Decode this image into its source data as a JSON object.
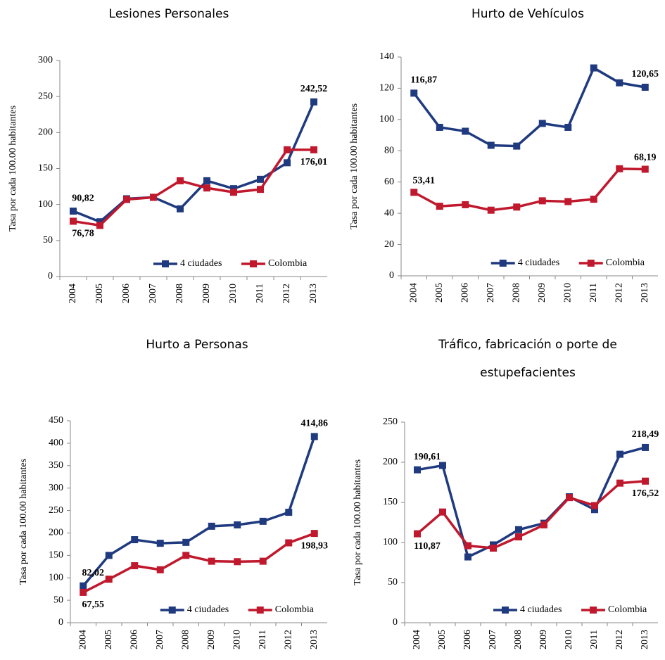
{
  "chart_data": [
    {
      "type": "line",
      "title": [
        "Lesiones Personales"
      ],
      "y_label": "Tasa por cada 100.00 habitantes",
      "categories": [
        "2004",
        "2005",
        "2006",
        "2007",
        "2008",
        "2009",
        "2010",
        "2011",
        "2012",
        "2013"
      ],
      "ylim": [
        0,
        300
      ],
      "yticks": [
        0,
        50,
        100,
        150,
        200,
        250,
        300
      ],
      "legend": "lower right",
      "series": [
        {
          "name": "4 ciudades",
          "color": "#1f3a7f",
          "values": [
            90.82,
            76,
            108,
            110,
            94,
            133,
            122,
            135,
            158,
            242.52
          ],
          "value_labels": [
            "90,82",
            null,
            null,
            null,
            null,
            null,
            null,
            null,
            null,
            "242,52"
          ]
        },
        {
          "name": "Colombia",
          "color": "#c0182d",
          "values": [
            76.78,
            71,
            107,
            110,
            133,
            123,
            117,
            121,
            176,
            176.01
          ],
          "value_labels": [
            "76,78",
            null,
            null,
            null,
            null,
            null,
            null,
            null,
            null,
            "176,01"
          ]
        }
      ]
    },
    {
      "type": "line",
      "title": [
        "Hurto de Vehículos"
      ],
      "y_label": "Tasa por cada 100.00 habitantes",
      "categories": [
        "2004",
        "2005",
        "2006",
        "2007",
        "2008",
        "2009",
        "2010",
        "2011",
        "2012",
        "2013"
      ],
      "ylim": [
        0,
        140
      ],
      "yticks": [
        0,
        20,
        40,
        60,
        80,
        100,
        120,
        140
      ],
      "legend": "lower right",
      "series": [
        {
          "name": "4 ciudades",
          "color": "#1f3a7f",
          "values": [
            116.87,
            95,
            92.5,
            83.5,
            83,
            97.5,
            95,
            133,
            123.5,
            120.65
          ],
          "value_labels": [
            "116,87",
            null,
            null,
            null,
            null,
            null,
            null,
            null,
            null,
            "120,65"
          ]
        },
        {
          "name": "Colombia",
          "color": "#c0182d",
          "values": [
            53.41,
            44.5,
            45.5,
            42,
            44,
            48,
            47.5,
            49,
            68.5,
            68.19
          ],
          "value_labels": [
            "53,41",
            null,
            null,
            null,
            null,
            null,
            null,
            null,
            null,
            "68,19"
          ]
        }
      ]
    },
    {
      "type": "line",
      "title": [
        "Hurto a Personas"
      ],
      "y_label": "Tasa por cada 100.00 habitantes",
      "categories": [
        "2004",
        "2005",
        "2006",
        "2007",
        "2008",
        "2009",
        "2010",
        "2011",
        "2012",
        "2013"
      ],
      "ylim": [
        0,
        450
      ],
      "yticks": [
        0,
        50,
        100,
        150,
        200,
        250,
        300,
        350,
        400,
        450
      ],
      "legend": "lower right",
      "series": [
        {
          "name": "4 ciudades",
          "color": "#1f3a7f",
          "values": [
            82.02,
            150,
            185,
            177,
            179,
            215,
            218,
            226,
            246,
            414.86
          ],
          "value_labels": [
            "82,02",
            null,
            null,
            null,
            null,
            null,
            null,
            null,
            null,
            "414,86"
          ]
        },
        {
          "name": "Colombia",
          "color": "#c0182d",
          "values": [
            67.55,
            97,
            127,
            118,
            150,
            137,
            136,
            137,
            178,
            198.93
          ],
          "value_labels": [
            "67,55",
            null,
            null,
            null,
            null,
            null,
            null,
            null,
            null,
            "198,93"
          ]
        }
      ]
    },
    {
      "type": "line",
      "title": [
        "Tráfico, fabricación o porte de",
        "estupefacientes"
      ],
      "y_label": "Tasa por cada 100.00 habitantes",
      "categories": [
        "2004",
        "2005",
        "2006",
        "2007",
        "2008",
        "2009",
        "2010",
        "2011",
        "2012",
        "2013"
      ],
      "ylim": [
        0,
        250
      ],
      "yticks": [
        0,
        50,
        100,
        150,
        200,
        250
      ],
      "legend": "lower right",
      "series": [
        {
          "name": "4 ciudades",
          "color": "#1f3a7f",
          "values": [
            190.61,
            196,
            82,
            97,
            116,
            124,
            157,
            141,
            210,
            218.49
          ],
          "value_labels": [
            "190,61",
            null,
            null,
            null,
            null,
            null,
            null,
            null,
            null,
            "218,49"
          ]
        },
        {
          "name": "Colombia",
          "color": "#c0182d",
          "values": [
            110.87,
            138,
            96,
            93,
            107,
            122,
            156,
            146,
            174,
            176.52
          ],
          "value_labels": [
            "110,87",
            null,
            null,
            null,
            null,
            null,
            null,
            null,
            null,
            "176,52"
          ]
        }
      ]
    }
  ]
}
